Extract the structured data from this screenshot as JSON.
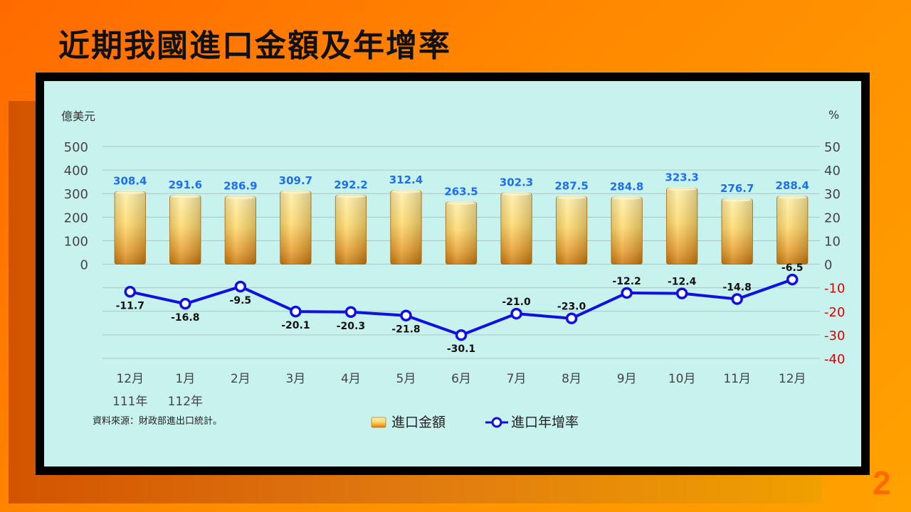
{
  "slide": {
    "title": "近期我國進口金額及年增率",
    "page_number": "2",
    "source_note": "資料來源：財政部進出口統計。"
  },
  "colors": {
    "bar_light": "#ffe07a",
    "bar_dark": "#d98a1a",
    "line": "#1010e0",
    "value_label": "#1e6ff0",
    "negative_tick": "#e00000"
  },
  "chart_data": {
    "type": "bar",
    "categories": [
      "12月",
      "1月",
      "2月",
      "3月",
      "4月",
      "5月",
      "6月",
      "7月",
      "8月",
      "9月",
      "10月",
      "11月",
      "12月"
    ],
    "year_labels": [
      "111年",
      "112年",
      "",
      "",
      "",
      "",
      "",
      "",
      "",
      "",
      "",
      "",
      ""
    ],
    "series": [
      {
        "name": "進口金額",
        "type": "bar",
        "axis": "left",
        "values": [
          308.4,
          291.6,
          286.9,
          309.7,
          292.2,
          312.4,
          263.5,
          302.3,
          287.5,
          284.8,
          323.3,
          276.7,
          288.4
        ],
        "labels": [
          "308.4",
          "291.6",
          "286.9",
          "309.7",
          "292.2",
          "312.4",
          "263.5",
          "302.3",
          "287.5",
          "284.8",
          "323.3",
          "276.7",
          "288.4"
        ]
      },
      {
        "name": "進口年增率",
        "type": "line",
        "axis": "right",
        "values": [
          -11.7,
          -16.8,
          -9.5,
          -20.1,
          -20.3,
          -21.8,
          -30.1,
          -21.0,
          -23.0,
          -12.2,
          -12.4,
          -14.8,
          -6.5
        ],
        "labels": [
          "-11.7",
          "-16.8",
          "-9.5",
          "-20.1",
          "-20.3",
          "-21.8",
          "-30.1",
          "-21.0",
          "-23.0",
          "-12.2",
          "-12.4",
          "-14.8",
          "-6.5"
        ],
        "label_position": [
          "below",
          "below",
          "below",
          "below",
          "below",
          "below",
          "below",
          "above",
          "above",
          "above",
          "above",
          "above",
          "above"
        ]
      }
    ],
    "left_axis": {
      "label": "億美元",
      "ticks": [
        "500",
        "400",
        "300",
        "200",
        "100",
        "0"
      ],
      "range": [
        -400,
        500
      ]
    },
    "right_axis": {
      "label": "%",
      "ticks": [
        "50",
        "40",
        "30",
        "20",
        "10",
        "0",
        "-10",
        "-20",
        "-30",
        "-40"
      ],
      "range": [
        -40,
        50
      ]
    },
    "grid": true,
    "legend": {
      "position": "bottom",
      "items": [
        "進口金額",
        "進口年增率"
      ]
    }
  }
}
